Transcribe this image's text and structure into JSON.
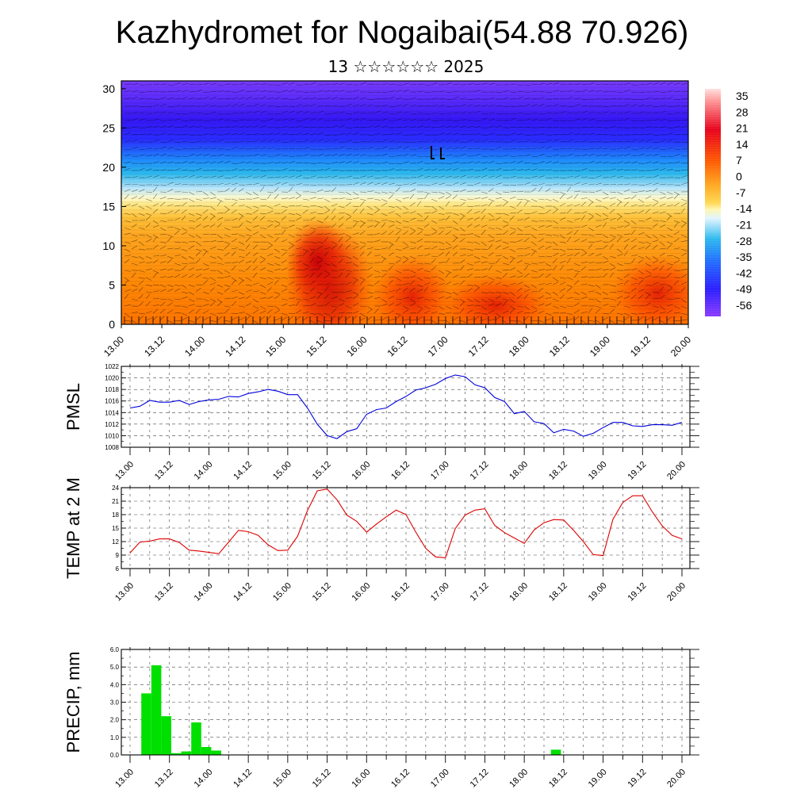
{
  "title": "Kazhydromet for Nogaibai(54.88 70.926)",
  "subtitle": "13 ☆☆☆☆☆☆ 2025",
  "chart_data": [
    {
      "type": "heatmap",
      "name": "vertical-cross-section",
      "x_ticks": [
        "13.00",
        "13.12",
        "14.00",
        "14.12",
        "15.00",
        "15.12",
        "16.00",
        "16.12",
        "17.00",
        "17.12",
        "18.00",
        "18.12",
        "19.00",
        "19.12",
        "20.00"
      ],
      "y_ticks": [
        "0",
        "5",
        "10",
        "15",
        "20",
        "25",
        "30"
      ],
      "ylim": [
        0,
        31
      ],
      "colorbar_labels": [
        "35",
        "28",
        "21",
        "14",
        "7",
        "0",
        "-7",
        "-14",
        "-21",
        "-28",
        "-35",
        "-42",
        "-49",
        "-56"
      ],
      "colors": {
        "hot": "#c8000a",
        "warm": "#ff6a00",
        "orange": "#ffa51f",
        "pale": "#fff6b0",
        "cyan": "#2bb8ee",
        "blue": "#3224ff",
        "purple": "#7a3cff"
      }
    },
    {
      "type": "line",
      "name": "pmsl",
      "ylabel": "PMSL",
      "ylim": [
        1008,
        1022
      ],
      "y_ticks": [
        "1008",
        "1010",
        "1012",
        "1014",
        "1016",
        "1018",
        "1020",
        "1022"
      ],
      "x_ticks": [
        "13.00",
        "13.12",
        "14.00",
        "14.12",
        "15.00",
        "15.12",
        "16.00",
        "16.12",
        "17.00",
        "17.12",
        "18.00",
        "18.12",
        "19.00",
        "19.12",
        "20.00"
      ],
      "color": "#0000dd",
      "series": [
        {
          "values": [
            1014.8,
            1015.1,
            1016.1,
            1015.8,
            1015.8,
            1016.1,
            1015.4,
            1015.9,
            1016.2,
            1016.3,
            1016.8,
            1016.7,
            1017.3,
            1017.6,
            1018.0,
            1017.7,
            1017.1,
            1017.1,
            1014.8,
            1012.0,
            1010.0,
            1009.5,
            1010.7,
            1011.2,
            1013.7,
            1014.5,
            1014.8,
            1015.9,
            1016.8,
            1017.9,
            1018.3,
            1018.9,
            1019.9,
            1020.5,
            1020.2,
            1018.8,
            1018.3,
            1016.6,
            1015.9,
            1013.8,
            1014.2,
            1012.4,
            1012.1,
            1010.5,
            1011.1,
            1010.8,
            1009.9,
            1010.4,
            1011.4,
            1012.3,
            1012.3,
            1011.7,
            1011.6,
            1011.9,
            1011.9,
            1011.8,
            1012.3
          ]
        }
      ]
    },
    {
      "type": "line",
      "name": "temp-2m",
      "ylabel": "TEMP at 2 M",
      "ylim": [
        6,
        24
      ],
      "y_ticks": [
        "6",
        "9",
        "12",
        "15",
        "18",
        "21",
        "24"
      ],
      "x_ticks": [
        "13.00",
        "13.12",
        "14.00",
        "14.12",
        "15.00",
        "15.12",
        "16.00",
        "16.12",
        "17.00",
        "17.12",
        "18.00",
        "18.12",
        "19.00",
        "19.12",
        "20.00"
      ],
      "color": "#dd0000",
      "series": [
        {
          "values": [
            9.5,
            11.9,
            12.1,
            12.6,
            12.6,
            11.8,
            10.1,
            9.9,
            9.6,
            9.3,
            11.9,
            14.5,
            14.2,
            13.4,
            11.3,
            10.0,
            10.1,
            13.2,
            18.9,
            23.3,
            23.7,
            21.3,
            17.9,
            16.5,
            14.1,
            15.9,
            17.5,
            19.0,
            18.0,
            14.1,
            10.5,
            8.6,
            8.4,
            14.9,
            17.9,
            19.0,
            19.3,
            15.6,
            14.0,
            12.8,
            11.6,
            14.6,
            16.2,
            16.9,
            16.8,
            14.5,
            12.0,
            9.1,
            8.9,
            17.0,
            20.7,
            22.2,
            22.2,
            18.6,
            15.5,
            13.4,
            12.6
          ]
        }
      ]
    },
    {
      "type": "bar",
      "name": "precip",
      "ylabel": "PRECIP, mm",
      "ylim": [
        0,
        6
      ],
      "y_ticks": [
        "0.0",
        "1.0",
        "2.0",
        "3.0",
        "4.0",
        "5.0",
        "6.0"
      ],
      "x_ticks": [
        "13.00",
        "13.12",
        "14.00",
        "14.12",
        "15.00",
        "15.12",
        "16.00",
        "16.12",
        "17.00",
        "17.12",
        "18.00",
        "18.12",
        "19.00",
        "19.12",
        "20.00"
      ],
      "color": "#00e000",
      "series": [
        {
          "values": [
            0,
            0,
            3.5,
            5.1,
            2.2,
            0.1,
            0.2,
            1.85,
            0.45,
            0.25,
            0,
            0,
            0,
            0,
            0,
            0,
            0,
            0,
            0,
            0,
            0,
            0,
            0,
            0,
            0,
            0,
            0,
            0,
            0,
            0,
            0,
            0,
            0,
            0,
            0,
            0,
            0,
            0,
            0,
            0,
            0,
            0,
            0,
            0.3,
            0,
            0,
            0,
            0,
            0,
            0,
            0,
            0,
            0,
            0,
            0,
            0
          ]
        }
      ]
    }
  ]
}
